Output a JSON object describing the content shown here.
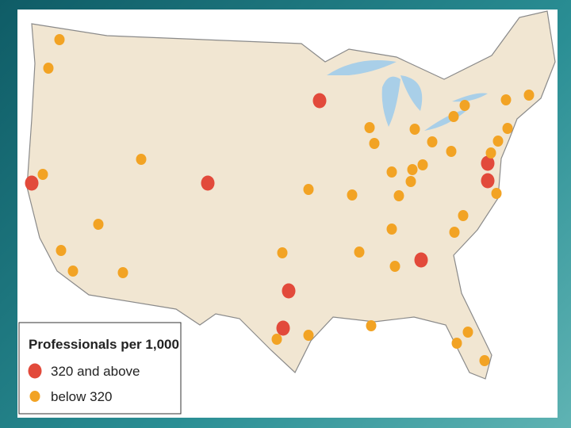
{
  "legend": {
    "title": "Professionals per 1,000",
    "items": [
      {
        "label": "320 and above",
        "color": "#e24a3b"
      },
      {
        "label": "below 320",
        "color": "#f2a324"
      }
    ]
  }
}
